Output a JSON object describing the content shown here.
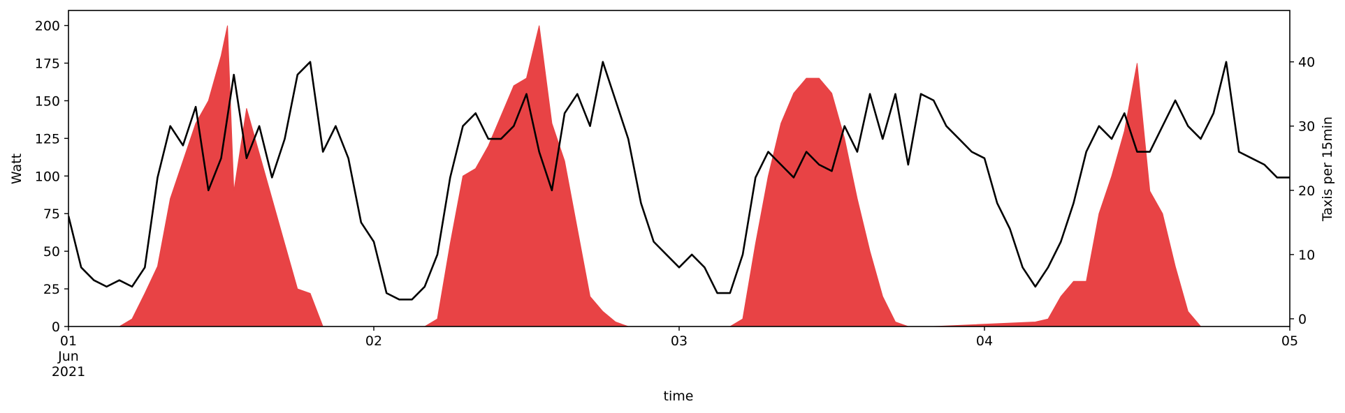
{
  "chart_data": {
    "type": "area",
    "xlabel": "time",
    "x_range": [
      "2021-06-01 00:00",
      "2021-06-05 00:00"
    ],
    "x_ticks": [
      {
        "x": "2021-06-01",
        "label": "01",
        "sublabel": "Jun",
        "sublabel2": "2021"
      },
      {
        "x": "2021-06-02",
        "label": "02"
      },
      {
        "x": "2021-06-03",
        "label": "03"
      },
      {
        "x": "2021-06-04",
        "label": "04"
      },
      {
        "x": "2021-06-05",
        "label": "05"
      }
    ],
    "y_left": {
      "label": "Watt",
      "lim": [
        0,
        210
      ],
      "ticks": [
        0,
        25,
        50,
        75,
        100,
        125,
        150,
        175,
        200
      ]
    },
    "y_right": {
      "label": "Taxis per 15min",
      "lim": [
        -1.2,
        48
      ],
      "ticks": [
        0,
        10,
        20,
        30,
        40
      ]
    },
    "grid": false,
    "legend": "none",
    "series": [
      {
        "axis": "left",
        "style": "filled-area",
        "color": "#e84345",
        "x": [
          "2021-06-01 00:00",
          "2021-06-01 04:00",
          "2021-06-01 05:00",
          "2021-06-01 06:00",
          "2021-06-01 07:00",
          "2021-06-01 08:00",
          "2021-06-01 09:00",
          "2021-06-01 10:00",
          "2021-06-01 11:00",
          "2021-06-01 12:00",
          "2021-06-01 12:30",
          "2021-06-01 13:00",
          "2021-06-01 14:00",
          "2021-06-01 15:00",
          "2021-06-01 16:00",
          "2021-06-01 17:00",
          "2021-06-01 18:00",
          "2021-06-01 19:00",
          "2021-06-01 20:00",
          "2021-06-02 04:00",
          "2021-06-02 05:00",
          "2021-06-02 06:00",
          "2021-06-02 07:00",
          "2021-06-02 08:00",
          "2021-06-02 09:00",
          "2021-06-02 10:00",
          "2021-06-02 11:00",
          "2021-06-02 12:00",
          "2021-06-02 13:00",
          "2021-06-02 14:00",
          "2021-06-02 15:00",
          "2021-06-02 16:00",
          "2021-06-02 17:00",
          "2021-06-02 18:00",
          "2021-06-02 19:00",
          "2021-06-02 20:00",
          "2021-06-03 04:00",
          "2021-06-03 05:00",
          "2021-06-03 06:00",
          "2021-06-03 07:00",
          "2021-06-03 08:00",
          "2021-06-03 09:00",
          "2021-06-03 10:00",
          "2021-06-03 11:00",
          "2021-06-03 12:00",
          "2021-06-03 13:00",
          "2021-06-03 14:00",
          "2021-06-03 15:00",
          "2021-06-03 16:00",
          "2021-06-03 17:00",
          "2021-06-03 18:00",
          "2021-06-03 19:00",
          "2021-06-03 20:00",
          "2021-06-04 04:00",
          "2021-06-04 05:00",
          "2021-06-04 06:00",
          "2021-06-04 07:00",
          "2021-06-04 08:00",
          "2021-06-04 09:00",
          "2021-06-04 10:00",
          "2021-06-04 11:00",
          "2021-06-04 12:00",
          "2021-06-04 13:00",
          "2021-06-04 14:00",
          "2021-06-04 15:00",
          "2021-06-04 16:00",
          "2021-06-04 17:00",
          "2021-06-04 18:00",
          "2021-06-04 19:00",
          "2021-06-04 20:00",
          "2021-06-05 00:00"
        ],
        "values": [
          0,
          0,
          5,
          22,
          40,
          85,
          110,
          135,
          150,
          180,
          200,
          90,
          145,
          115,
          85,
          55,
          25,
          22,
          0,
          0,
          5,
          55,
          100,
          105,
          120,
          140,
          160,
          165,
          200,
          135,
          110,
          65,
          20,
          10,
          3,
          0,
          0,
          5,
          55,
          100,
          135,
          155,
          165,
          165,
          155,
          125,
          85,
          50,
          20,
          3,
          0,
          0,
          0,
          3,
          5,
          20,
          30,
          30,
          75,
          100,
          130,
          175,
          90,
          75,
          40,
          10,
          0,
          0,
          0,
          0,
          0
        ]
      },
      {
        "axis": "right",
        "style": "line",
        "color": "#000000",
        "x": [
          "2021-06-01 00:00",
          "2021-06-01 01:00",
          "2021-06-01 02:00",
          "2021-06-01 03:00",
          "2021-06-01 04:00",
          "2021-06-01 05:00",
          "2021-06-01 06:00",
          "2021-06-01 07:00",
          "2021-06-01 08:00",
          "2021-06-01 09:00",
          "2021-06-01 10:00",
          "2021-06-01 11:00",
          "2021-06-01 12:00",
          "2021-06-01 13:00",
          "2021-06-01 14:00",
          "2021-06-01 15:00",
          "2021-06-01 16:00",
          "2021-06-01 17:00",
          "2021-06-01 18:00",
          "2021-06-01 19:00",
          "2021-06-01 20:00",
          "2021-06-01 21:00",
          "2021-06-01 22:00",
          "2021-06-01 23:00",
          "2021-06-02 00:00",
          "2021-06-02 01:00",
          "2021-06-02 02:00",
          "2021-06-02 03:00",
          "2021-06-02 04:00",
          "2021-06-02 05:00",
          "2021-06-02 06:00",
          "2021-06-02 07:00",
          "2021-06-02 08:00",
          "2021-06-02 09:00",
          "2021-06-02 10:00",
          "2021-06-02 11:00",
          "2021-06-02 12:00",
          "2021-06-02 13:00",
          "2021-06-02 14:00",
          "2021-06-02 15:00",
          "2021-06-02 16:00",
          "2021-06-02 17:00",
          "2021-06-02 18:00",
          "2021-06-02 19:00",
          "2021-06-02 20:00",
          "2021-06-02 21:00",
          "2021-06-02 22:00",
          "2021-06-02 23:00",
          "2021-06-03 00:00",
          "2021-06-03 01:00",
          "2021-06-03 02:00",
          "2021-06-03 03:00",
          "2021-06-03 04:00",
          "2021-06-03 05:00",
          "2021-06-03 06:00",
          "2021-06-03 07:00",
          "2021-06-03 08:00",
          "2021-06-03 09:00",
          "2021-06-03 10:00",
          "2021-06-03 11:00",
          "2021-06-03 12:00",
          "2021-06-03 13:00",
          "2021-06-03 14:00",
          "2021-06-03 15:00",
          "2021-06-03 16:00",
          "2021-06-03 17:00",
          "2021-06-03 18:00",
          "2021-06-03 19:00",
          "2021-06-03 20:00",
          "2021-06-03 21:00",
          "2021-06-03 22:00",
          "2021-06-03 23:00",
          "2021-06-04 00:00",
          "2021-06-04 01:00",
          "2021-06-04 02:00",
          "2021-06-04 03:00",
          "2021-06-04 04:00",
          "2021-06-04 05:00",
          "2021-06-04 06:00",
          "2021-06-04 07:00",
          "2021-06-04 08:00",
          "2021-06-04 09:00",
          "2021-06-04 10:00",
          "2021-06-04 11:00",
          "2021-06-04 12:00",
          "2021-06-04 13:00",
          "2021-06-04 14:00",
          "2021-06-04 15:00",
          "2021-06-04 16:00",
          "2021-06-04 17:00",
          "2021-06-04 18:00",
          "2021-06-04 19:00",
          "2021-06-04 20:00",
          "2021-06-04 21:00",
          "2021-06-04 22:00",
          "2021-06-04 23:00",
          "2021-06-05 00:00"
        ],
        "values": [
          16,
          8,
          6,
          5,
          6,
          5,
          8,
          22,
          30,
          27,
          33,
          20,
          25,
          38,
          25,
          30,
          22,
          28,
          38,
          40,
          26,
          30,
          25,
          15,
          12,
          4,
          3,
          3,
          5,
          10,
          22,
          30,
          32,
          28,
          28,
          30,
          35,
          26,
          20,
          32,
          35,
          30,
          40,
          34,
          28,
          18,
          12,
          10,
          8,
          10,
          8,
          4,
          4,
          10,
          22,
          26,
          24,
          22,
          26,
          24,
          23,
          30,
          26,
          35,
          28,
          35,
          24,
          35,
          34,
          30,
          28,
          26,
          25,
          18,
          14,
          8,
          5,
          8,
          12,
          18,
          26,
          30,
          28,
          32,
          26,
          26,
          30,
          34,
          30,
          28,
          32,
          40,
          26,
          25,
          24,
          22,
          22
        ]
      }
    ]
  }
}
